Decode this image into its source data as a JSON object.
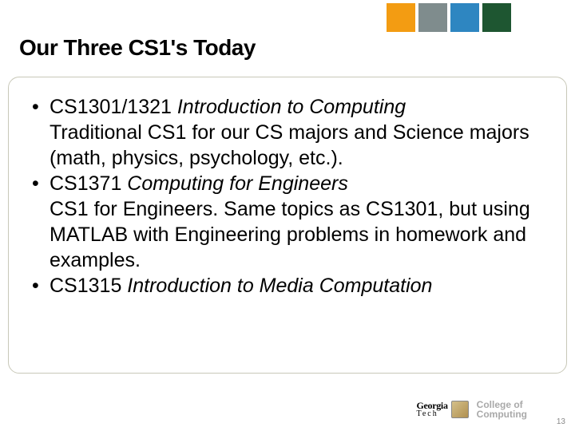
{
  "header_tiles": [
    {
      "bg": "#f39c12"
    },
    {
      "bg": "#7f8c8d"
    },
    {
      "bg": "#2e86c1"
    },
    {
      "bg": "#1e5631"
    }
  ],
  "title": "Our Three CS1's Today",
  "title_color": "#000000",
  "title_fontsize": 28,
  "round_box": {
    "border_color": "#c8c8b8",
    "radius": 14
  },
  "body_fontsize": 25,
  "body_color": "#000000",
  "bullets": [
    {
      "course_code": "CS1301/1321 ",
      "course_title": "Introduction to Computing",
      "desc": "Traditional CS1 for our CS majors and Science majors (math, physics, psychology, etc.)."
    },
    {
      "course_code": "CS1371 ",
      "course_title": "Computing for Engineers",
      "desc": "CS1 for Engineers.  Same topics as CS1301, but using MATLAB with Engineering problems in homework and examples."
    },
    {
      "course_code": "CS1315 ",
      "course_title": "Introduction to Media Computation",
      "desc": ""
    }
  ],
  "footer": {
    "gt": {
      "line1": "Georgia",
      "line2": "Tech",
      "color": "#000000"
    },
    "coc": {
      "line1": "College of",
      "line2": "Computing",
      "color": "#a9a9a9"
    }
  },
  "page_number": "13",
  "page_number_color": "#888888",
  "background_color": "#ffffff"
}
